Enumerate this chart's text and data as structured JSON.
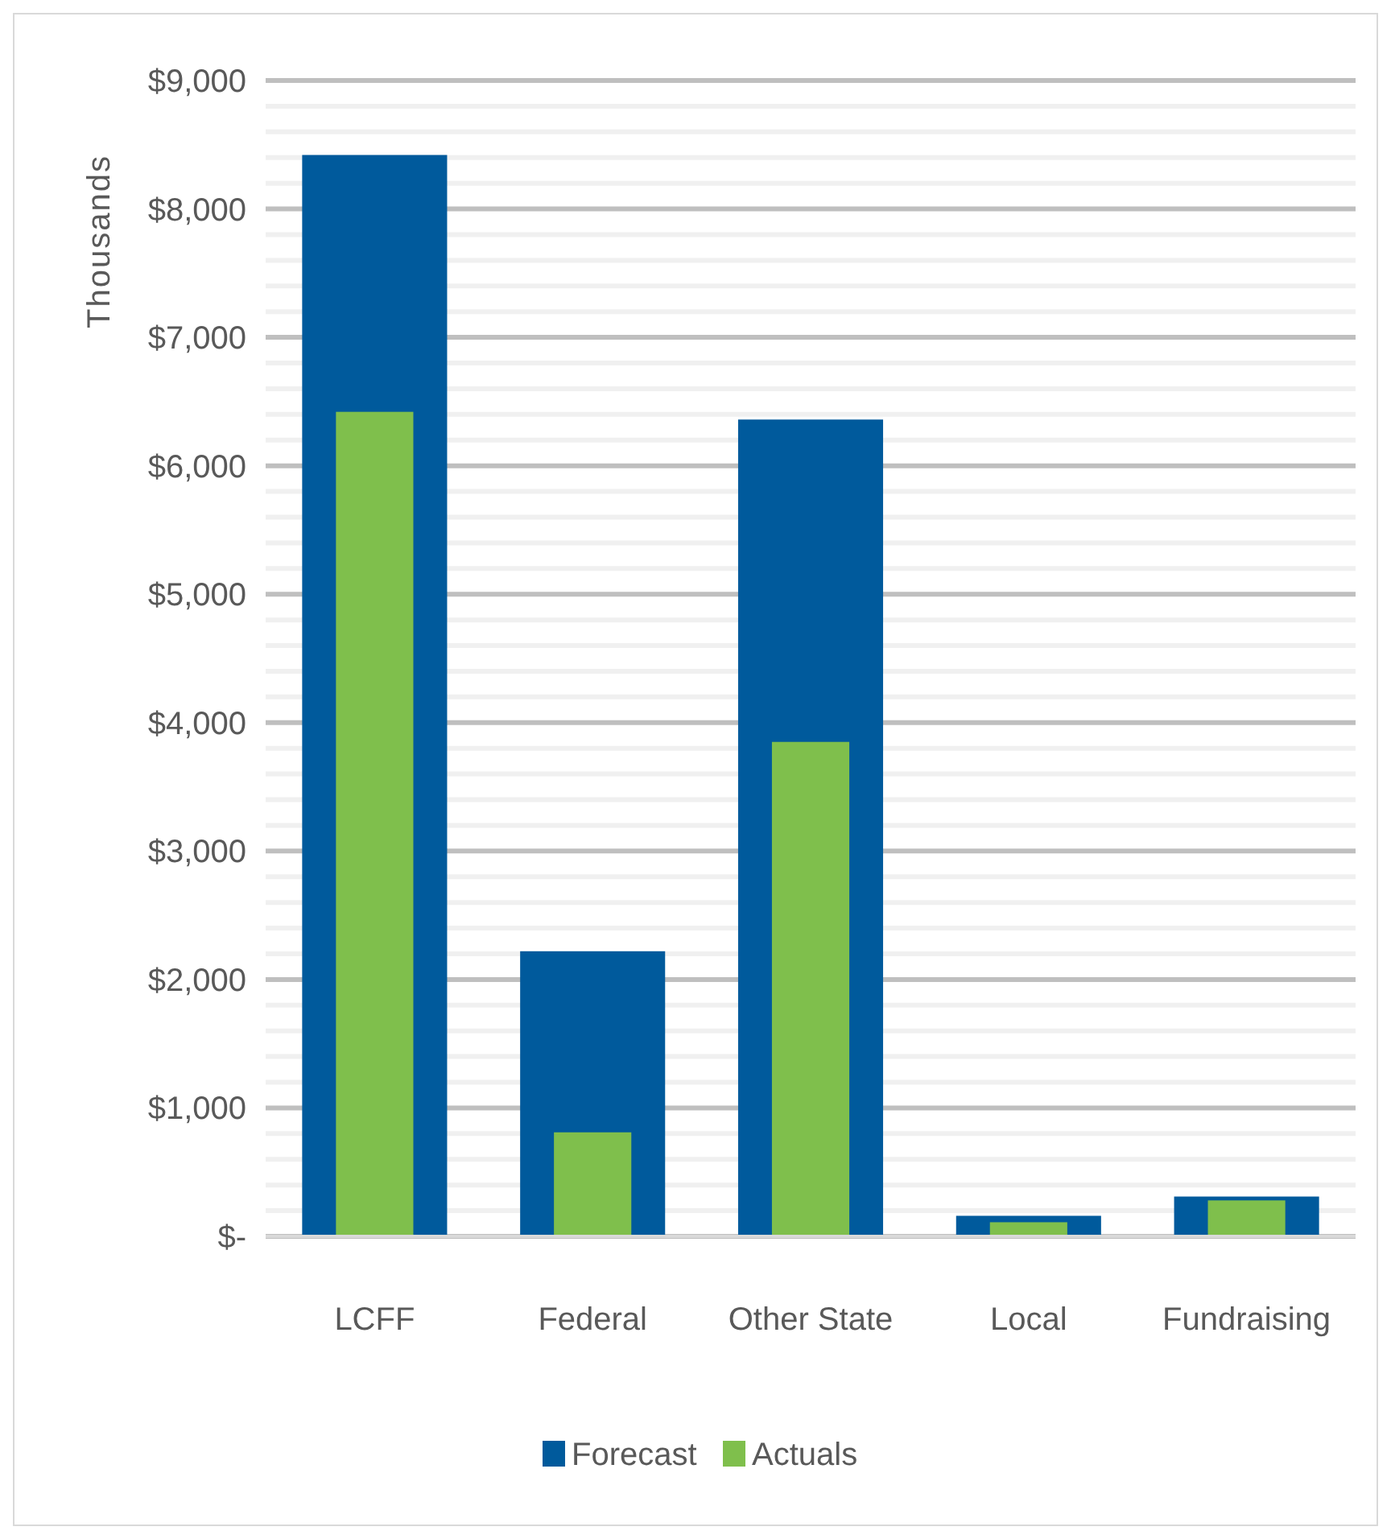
{
  "chart_data": {
    "type": "bar",
    "ylabel": "Thousands",
    "categories": [
      "LCFF",
      "Federal",
      "Other State",
      "Local",
      "Fundraising"
    ],
    "series": [
      {
        "name": "Forecast",
        "color": "#005a9c",
        "values": [
          8420,
          2220,
          6360,
          160,
          310
        ]
      },
      {
        "name": "Actuals",
        "color": "#7fbf4c",
        "values": [
          6420,
          810,
          3850,
          110,
          280
        ]
      }
    ],
    "ylim": [
      0,
      9000
    ],
    "yticks": [
      {
        "value": 0,
        "label": "$-"
      },
      {
        "value": 200,
        "label": null
      },
      {
        "value": 400,
        "label": null
      },
      {
        "value": 600,
        "label": null
      },
      {
        "value": 800,
        "label": null
      },
      {
        "value": 1000,
        "label": "$1,000"
      },
      {
        "value": 1200,
        "label": null
      },
      {
        "value": 1400,
        "label": null
      },
      {
        "value": 1600,
        "label": null
      },
      {
        "value": 1800,
        "label": null
      },
      {
        "value": 2000,
        "label": "$2,000"
      },
      {
        "value": 2200,
        "label": null
      },
      {
        "value": 2400,
        "label": null
      },
      {
        "value": 2600,
        "label": null
      },
      {
        "value": 2800,
        "label": null
      },
      {
        "value": 3000,
        "label": "$3,000"
      },
      {
        "value": 3200,
        "label": null
      },
      {
        "value": 3400,
        "label": null
      },
      {
        "value": 3600,
        "label": null
      },
      {
        "value": 3800,
        "label": null
      },
      {
        "value": 4000,
        "label": "$4,000"
      },
      {
        "value": 4200,
        "label": null
      },
      {
        "value": 4400,
        "label": null
      },
      {
        "value": 4600,
        "label": null
      },
      {
        "value": 4800,
        "label": null
      },
      {
        "value": 5000,
        "label": "$5,000"
      },
      {
        "value": 5200,
        "label": null
      },
      {
        "value": 5400,
        "label": null
      },
      {
        "value": 5600,
        "label": null
      },
      {
        "value": 5800,
        "label": null
      },
      {
        "value": 6000,
        "label": "$6,000"
      },
      {
        "value": 6200,
        "label": null
      },
      {
        "value": 6400,
        "label": null
      },
      {
        "value": 6600,
        "label": null
      },
      {
        "value": 6800,
        "label": null
      },
      {
        "value": 7000,
        "label": "$7,000"
      },
      {
        "value": 7200,
        "label": null
      },
      {
        "value": 7400,
        "label": null
      },
      {
        "value": 7600,
        "label": null
      },
      {
        "value": 7800,
        "label": null
      },
      {
        "value": 8000,
        "label": "$8,000"
      },
      {
        "value": 8200,
        "label": null
      },
      {
        "value": 8400,
        "label": null
      },
      {
        "value": 8600,
        "label": null
      },
      {
        "value": 8800,
        "label": null
      },
      {
        "value": 9000,
        "label": "$9,000"
      }
    ],
    "grid": "y",
    "legend": "bottom"
  }
}
